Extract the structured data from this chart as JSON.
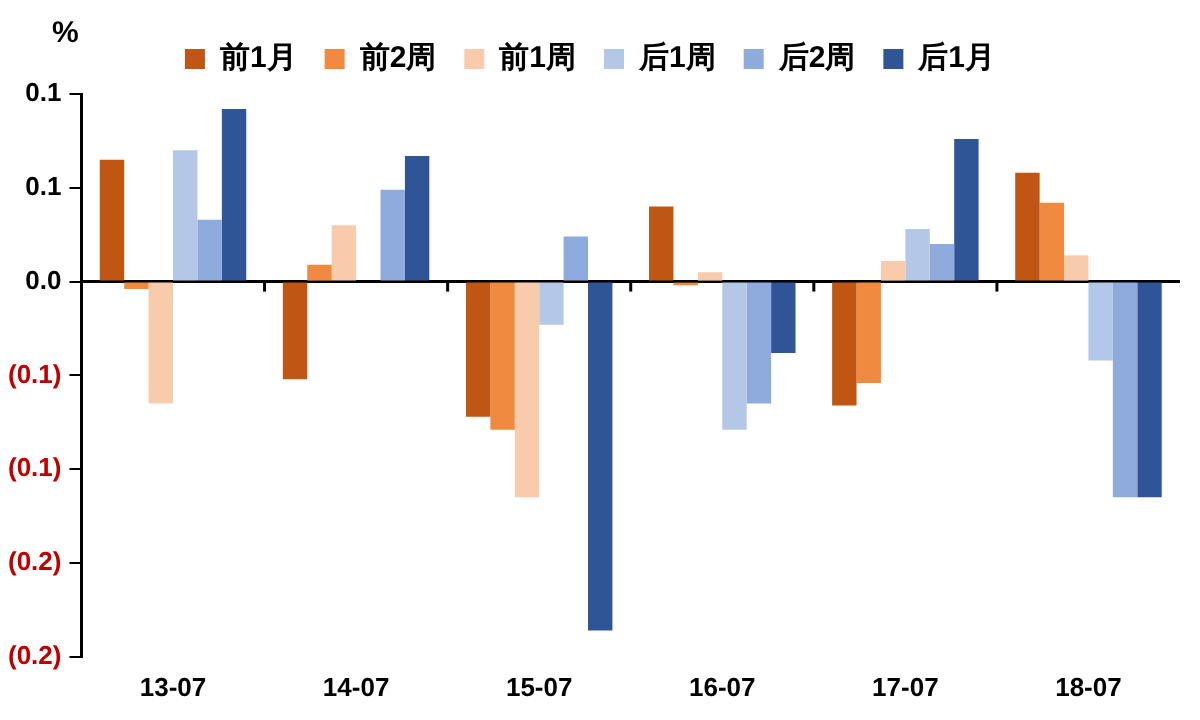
{
  "chart_data": {
    "type": "bar",
    "ylabel": "%",
    "categories": [
      "13-07",
      "14-07",
      "15-07",
      "16-07",
      "17-07",
      "18-07"
    ],
    "series": [
      {
        "name": "前1月",
        "color": "#c05614",
        "values": [
          0.065,
          -0.052,
          -0.072,
          0.04,
          -0.066,
          0.058
        ]
      },
      {
        "name": "前2周",
        "color": "#f08a40",
        "values": [
          -0.004,
          0.009,
          -0.079,
          -0.002,
          -0.054,
          0.042
        ]
      },
      {
        "name": "前1周",
        "color": "#f8cbad",
        "values": [
          -0.065,
          0.03,
          -0.115,
          0.005,
          0.011,
          0.014
        ]
      },
      {
        "name": "后1周",
        "color": "#b4c7e7",
        "values": [
          0.07,
          null,
          -0.023,
          -0.079,
          0.028,
          -0.042
        ]
      },
      {
        "name": "后2周",
        "color": "#8faadc",
        "values": [
          0.033,
          0.049,
          0.024,
          -0.065,
          0.02,
          -0.115
        ]
      },
      {
        "name": "后1月",
        "color": "#2f5597",
        "values": [
          0.092,
          0.067,
          -0.186,
          -0.038,
          0.076,
          -0.115
        ]
      }
    ],
    "ylim": [
      -0.2,
      0.1
    ],
    "yticks": [
      {
        "value": 0.1,
        "label": "0.1"
      },
      {
        "value": 0.05,
        "label": "0.1"
      },
      {
        "value": 0,
        "label": "0.0"
      },
      {
        "value": -0.05,
        "label": "(0.1)"
      },
      {
        "value": -0.1,
        "label": "(0.1)"
      },
      {
        "value": -0.15,
        "label": "(0.2)"
      },
      {
        "value": -0.2,
        "label": "(0.2)"
      }
    ],
    "ref_lines": [
      {
        "axis": "y",
        "value": 0,
        "color": "#000000"
      }
    ],
    "grid": false,
    "legend": "top"
  }
}
